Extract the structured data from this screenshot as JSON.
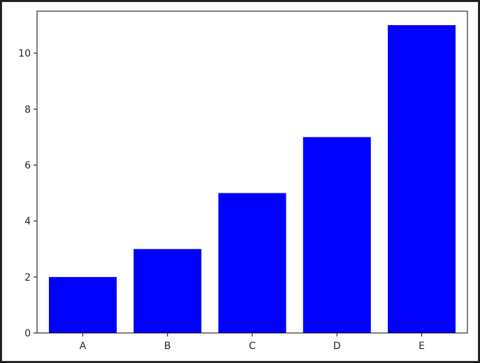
{
  "chart_data": {
    "type": "bar",
    "categories": [
      "A",
      "B",
      "C",
      "D",
      "E"
    ],
    "values": [
      2,
      3,
      5,
      7,
      11
    ],
    "title": "",
    "xlabel": "",
    "ylabel": "",
    "ylim": [
      0,
      11.5
    ],
    "yticks": [
      "0",
      "2",
      "4",
      "6",
      "8",
      "10"
    ],
    "bar_color": "#0000ff",
    "grid": false
  }
}
